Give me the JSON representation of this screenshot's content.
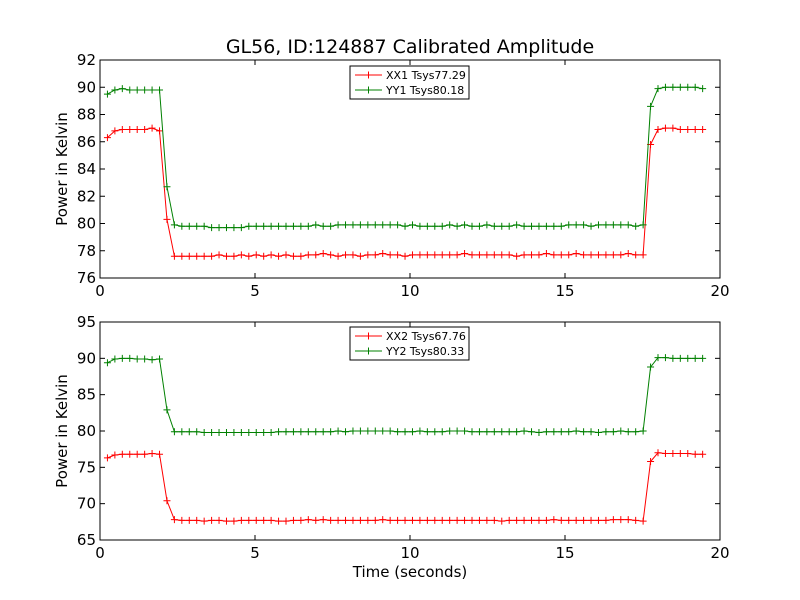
{
  "chart_data": [
    {
      "type": "line",
      "title": "GL56, ID:124887 Calibrated Amplitude",
      "xlabel": "",
      "ylabel": "Power in Kelvin",
      "xlim": [
        0,
        20
      ],
      "ylim": [
        76,
        92
      ],
      "xticks": [
        0,
        5,
        10,
        15,
        20
      ],
      "yticks": [
        76,
        78,
        80,
        82,
        84,
        86,
        88,
        90,
        92
      ],
      "legend_position": "top-center",
      "x": [
        0.24,
        0.48,
        0.72,
        0.96,
        1.2,
        1.44,
        1.68,
        1.92,
        2.16,
        2.4,
        2.64,
        2.88,
        3.12,
        3.36,
        3.6,
        3.84,
        4.08,
        4.32,
        4.56,
        4.8,
        5.04,
        5.28,
        5.52,
        5.76,
        6.0,
        6.24,
        6.48,
        6.72,
        6.96,
        7.2,
        7.44,
        7.68,
        7.92,
        8.16,
        8.4,
        8.64,
        8.88,
        9.12,
        9.36,
        9.6,
        9.84,
        10.08,
        10.32,
        10.56,
        10.8,
        11.04,
        11.28,
        11.52,
        11.76,
        12.0,
        12.24,
        12.48,
        12.72,
        12.96,
        13.2,
        13.44,
        13.68,
        13.92,
        14.16,
        14.4,
        14.64,
        14.88,
        15.12,
        15.36,
        15.6,
        15.84,
        16.08,
        16.32,
        16.56,
        16.8,
        17.04,
        17.28,
        17.52,
        17.76,
        18.0,
        18.24,
        18.48,
        18.72,
        18.96,
        19.2,
        19.44
      ],
      "series": [
        {
          "name": "XX1 Tsys77.29",
          "color": "#ff0000",
          "values": [
            86.3,
            86.8,
            86.9,
            86.9,
            86.9,
            86.9,
            87.0,
            86.8,
            80.3,
            77.6,
            77.6,
            77.6,
            77.6,
            77.6,
            77.6,
            77.7,
            77.6,
            77.6,
            77.7,
            77.6,
            77.7,
            77.6,
            77.7,
            77.6,
            77.7,
            77.6,
            77.6,
            77.7,
            77.7,
            77.8,
            77.7,
            77.6,
            77.7,
            77.7,
            77.6,
            77.7,
            77.7,
            77.8,
            77.7,
            77.7,
            77.6,
            77.7,
            77.7,
            77.7,
            77.7,
            77.7,
            77.7,
            77.7,
            77.8,
            77.7,
            77.7,
            77.7,
            77.7,
            77.7,
            77.7,
            77.6,
            77.7,
            77.7,
            77.7,
            77.8,
            77.7,
            77.7,
            77.7,
            77.8,
            77.7,
            77.7,
            77.7,
            77.7,
            77.7,
            77.7,
            77.8,
            77.7,
            77.7,
            85.8,
            86.9,
            87.0,
            87.0,
            86.9,
            86.9,
            86.9,
            86.9
          ]
        },
        {
          "name": "YY1 Tsys80.18",
          "color": "#008000",
          "values": [
            89.5,
            89.8,
            89.9,
            89.8,
            89.8,
            89.8,
            89.8,
            89.8,
            82.7,
            79.9,
            79.8,
            79.8,
            79.8,
            79.8,
            79.7,
            79.7,
            79.7,
            79.7,
            79.7,
            79.8,
            79.8,
            79.8,
            79.8,
            79.8,
            79.8,
            79.8,
            79.8,
            79.8,
            79.9,
            79.8,
            79.8,
            79.9,
            79.9,
            79.9,
            79.9,
            79.9,
            79.9,
            79.9,
            79.9,
            79.9,
            79.8,
            79.9,
            79.8,
            79.8,
            79.8,
            79.8,
            79.9,
            79.8,
            79.9,
            79.8,
            79.8,
            79.9,
            79.8,
            79.8,
            79.8,
            79.9,
            79.8,
            79.8,
            79.8,
            79.8,
            79.8,
            79.8,
            79.9,
            79.9,
            79.9,
            79.8,
            79.9,
            79.9,
            79.9,
            79.9,
            79.9,
            79.8,
            79.9,
            88.6,
            89.9,
            90.0,
            90.0,
            90.0,
            90.0,
            90.0,
            89.9
          ]
        }
      ]
    },
    {
      "type": "line",
      "title": "",
      "xlabel": "Time (seconds)",
      "ylabel": "Power in Kelvin",
      "xlim": [
        0,
        20
      ],
      "ylim": [
        65,
        95
      ],
      "xticks": [
        0,
        5,
        10,
        15,
        20
      ],
      "yticks": [
        65,
        70,
        75,
        80,
        85,
        90,
        95
      ],
      "legend_position": "top-center",
      "x": [
        0.24,
        0.48,
        0.72,
        0.96,
        1.2,
        1.44,
        1.68,
        1.92,
        2.16,
        2.4,
        2.64,
        2.88,
        3.12,
        3.36,
        3.6,
        3.84,
        4.08,
        4.32,
        4.56,
        4.8,
        5.04,
        5.28,
        5.52,
        5.76,
        6.0,
        6.24,
        6.48,
        6.72,
        6.96,
        7.2,
        7.44,
        7.68,
        7.92,
        8.16,
        8.4,
        8.64,
        8.88,
        9.12,
        9.36,
        9.6,
        9.84,
        10.08,
        10.32,
        10.56,
        10.8,
        11.04,
        11.28,
        11.52,
        11.76,
        12.0,
        12.24,
        12.48,
        12.72,
        12.96,
        13.2,
        13.44,
        13.68,
        13.92,
        14.16,
        14.4,
        14.64,
        14.88,
        15.12,
        15.36,
        15.6,
        15.84,
        16.08,
        16.32,
        16.56,
        16.8,
        17.04,
        17.28,
        17.52,
        17.76,
        18.0,
        18.24,
        18.48,
        18.72,
        18.96,
        19.2,
        19.44
      ],
      "series": [
        {
          "name": "XX2 Tsys67.76",
          "color": "#ff0000",
          "values": [
            76.3,
            76.7,
            76.8,
            76.8,
            76.8,
            76.8,
            76.9,
            76.8,
            70.4,
            67.8,
            67.7,
            67.7,
            67.7,
            67.6,
            67.7,
            67.7,
            67.6,
            67.6,
            67.7,
            67.7,
            67.7,
            67.7,
            67.7,
            67.6,
            67.6,
            67.7,
            67.7,
            67.8,
            67.7,
            67.8,
            67.7,
            67.7,
            67.7,
            67.7,
            67.7,
            67.7,
            67.7,
            67.8,
            67.7,
            67.7,
            67.7,
            67.7,
            67.7,
            67.7,
            67.7,
            67.7,
            67.7,
            67.7,
            67.7,
            67.7,
            67.7,
            67.7,
            67.7,
            67.6,
            67.7,
            67.7,
            67.7,
            67.7,
            67.7,
            67.7,
            67.8,
            67.7,
            67.7,
            67.7,
            67.7,
            67.7,
            67.7,
            67.7,
            67.8,
            67.8,
            67.8,
            67.7,
            67.6,
            75.8,
            77.0,
            76.9,
            76.9,
            76.9,
            76.9,
            76.8,
            76.8
          ]
        },
        {
          "name": "YY2 Tsys80.33",
          "color": "#008000",
          "values": [
            89.4,
            89.9,
            90.0,
            90.0,
            89.9,
            89.9,
            89.8,
            89.9,
            82.9,
            79.9,
            79.9,
            79.9,
            79.9,
            79.8,
            79.8,
            79.8,
            79.8,
            79.8,
            79.8,
            79.8,
            79.8,
            79.8,
            79.8,
            79.9,
            79.9,
            79.9,
            79.9,
            79.9,
            79.9,
            79.9,
            79.9,
            80.0,
            79.9,
            80.0,
            80.0,
            80.0,
            80.0,
            80.0,
            80.0,
            79.9,
            79.9,
            79.9,
            80.0,
            79.9,
            79.9,
            79.9,
            80.0,
            80.0,
            80.0,
            79.9,
            79.9,
            79.9,
            79.9,
            79.9,
            79.9,
            79.9,
            80.0,
            79.9,
            79.8,
            79.9,
            79.9,
            79.9,
            79.9,
            80.0,
            79.9,
            79.9,
            79.8,
            79.9,
            79.9,
            80.0,
            79.9,
            79.9,
            80.0,
            88.8,
            90.1,
            90.1,
            90.0,
            90.0,
            90.0,
            90.0,
            90.0
          ]
        }
      ]
    }
  ]
}
